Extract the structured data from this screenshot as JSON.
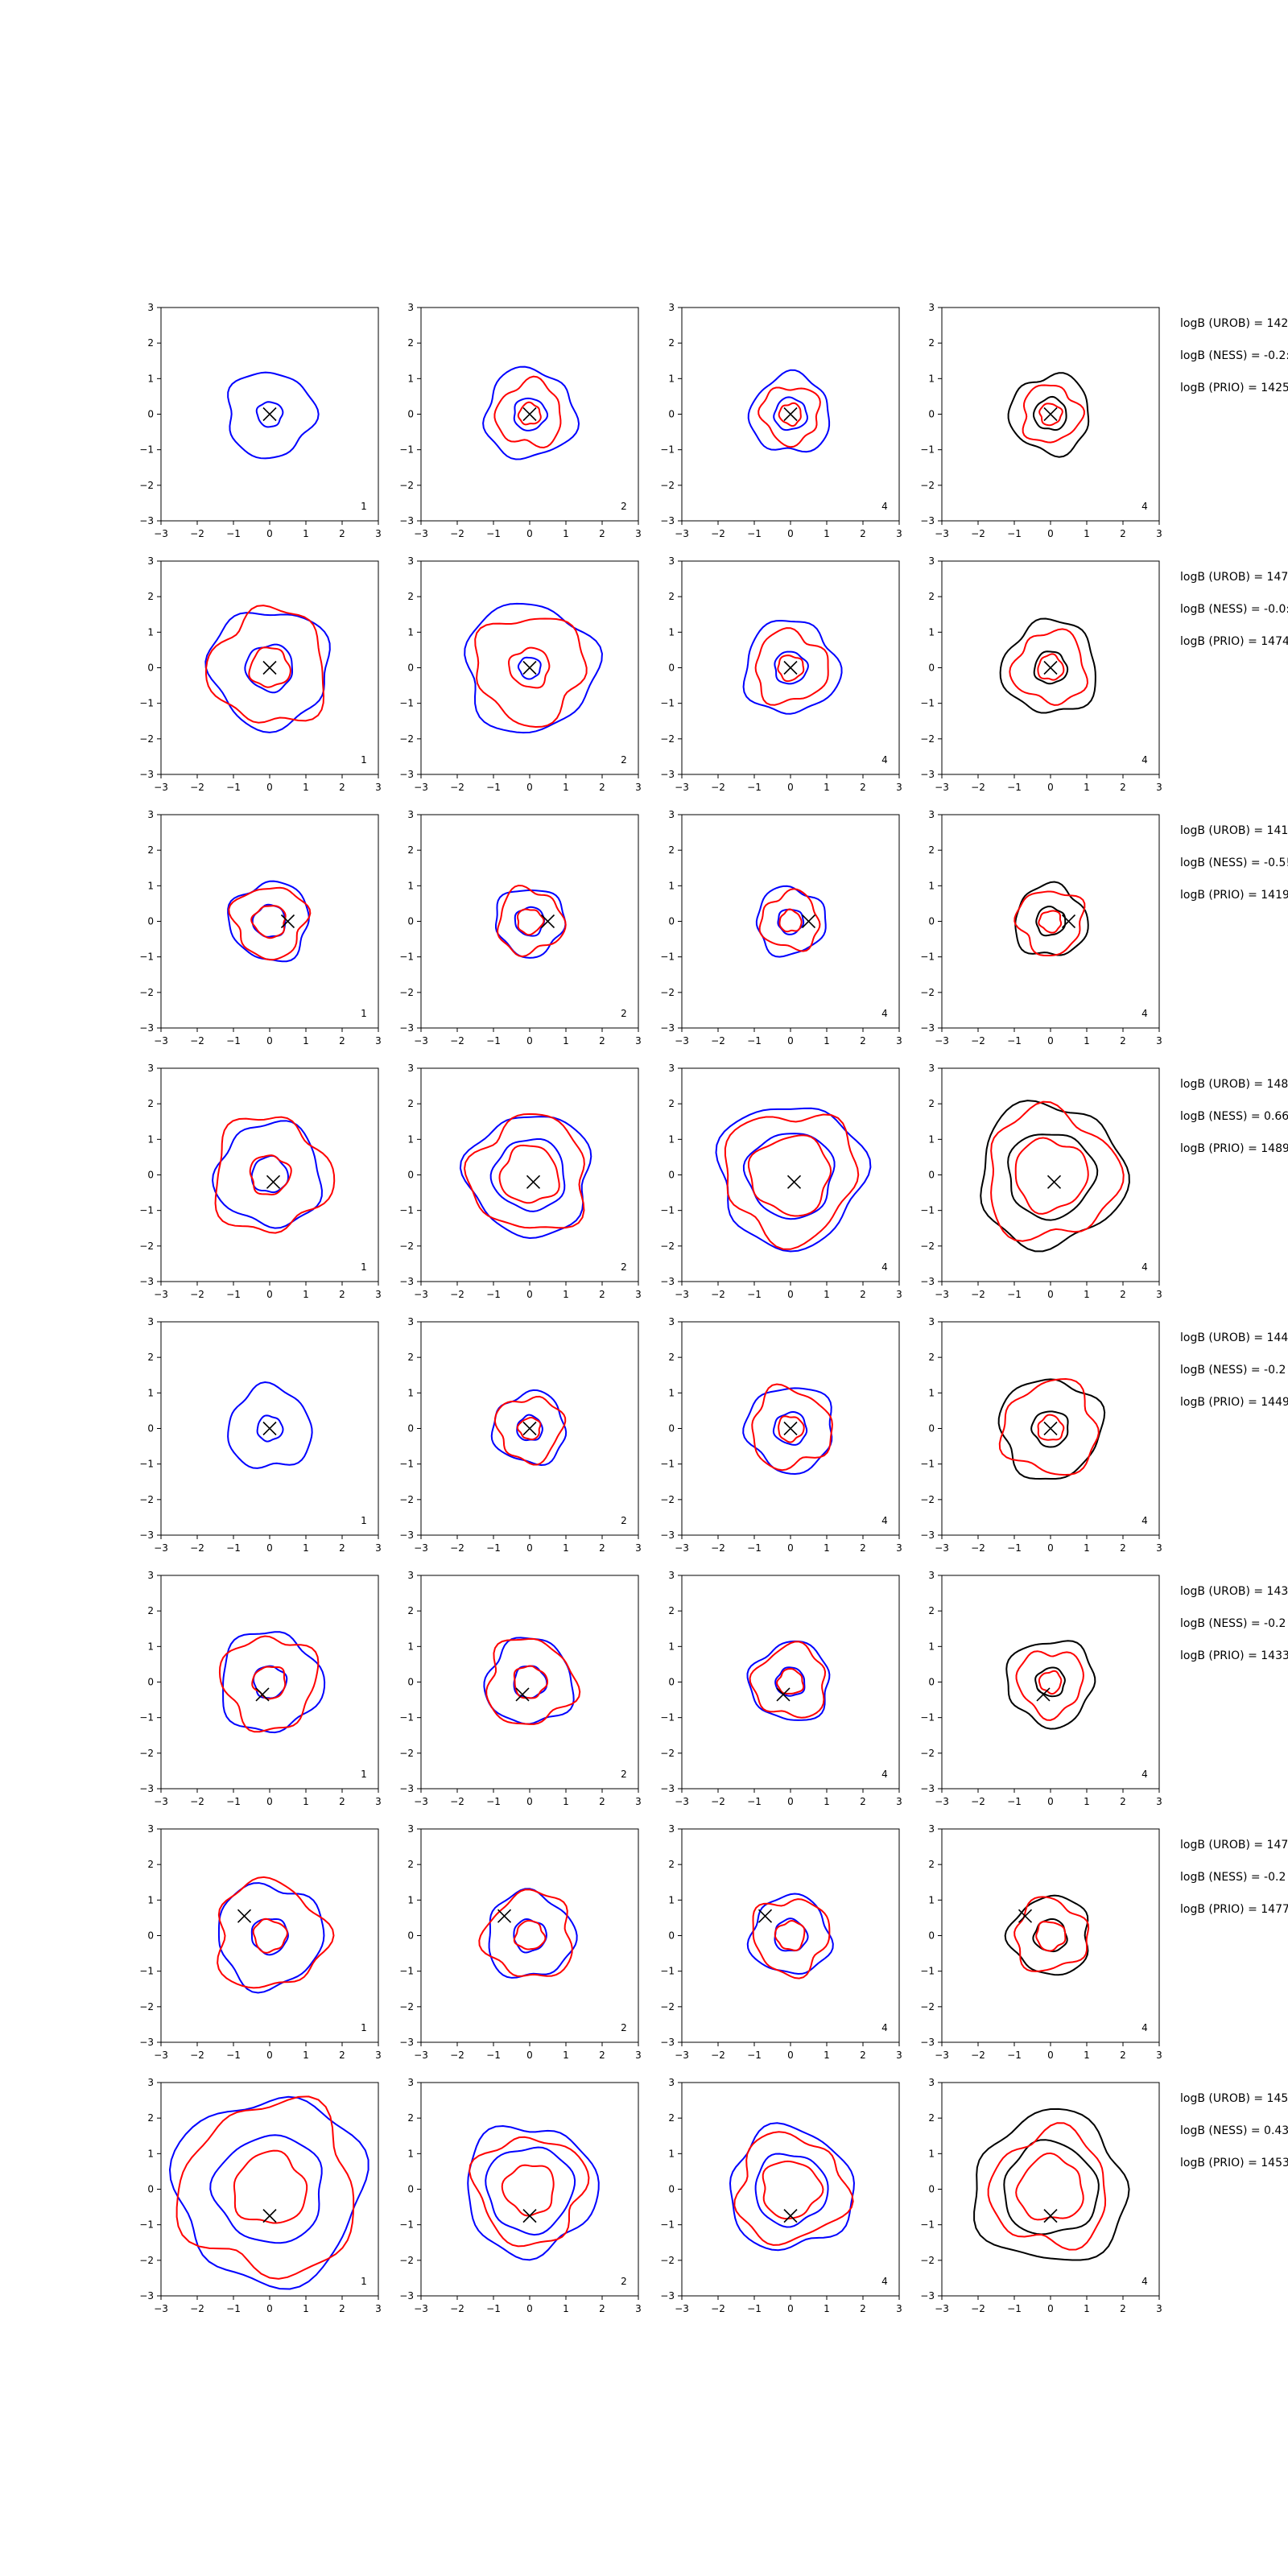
{
  "chart_data": {
    "type": "contour-grid",
    "xlim": [
      -3,
      3
    ],
    "ylim": [
      -3,
      3
    ],
    "ticks": [
      "−3",
      "−2",
      "−1",
      "0",
      "1",
      "2",
      "3"
    ],
    "grid": false,
    "colors": {
      "blue": "#0000ff",
      "red": "#ff0000",
      "black": "#000000",
      "marker": "#000000"
    },
    "panel_numbers": [
      "1",
      "2",
      "4",
      "4"
    ],
    "panel_colors": [
      [
        "blue",
        "red"
      ],
      [
        "blue",
        "red"
      ],
      [
        "blue",
        "red"
      ],
      [
        "black",
        "red"
      ]
    ],
    "rows": [
      {
        "notes": [
          "logB (UROB) = 142",
          "logB (NESS) = -0.2:",
          "logB (PRIO) = 1425"
        ],
        "marker": [
          0,
          0
        ],
        "panels": [
          {
            "a": [
              0.35,
              1.2
            ],
            "b": []
          },
          {
            "a": [
              0.45,
              1.25
            ],
            "b": [
              0.3,
              0.9
            ]
          },
          {
            "a": [
              0.45,
              1.1
            ],
            "b": [
              0.3,
              0.8
            ]
          },
          {
            "a": [
              0.45,
              1.1
            ],
            "b": [
              0.3,
              0.8
            ]
          }
        ]
      },
      {
        "notes": [
          "logB (UROB) = 147",
          "logB (NESS) = -0.0:",
          "logB (PRIO) = 1474"
        ],
        "marker": [
          0,
          0
        ],
        "panels": [
          {
            "a": [
              0.65,
              1.65
            ],
            "b": [
              0.55,
              1.6
            ]
          },
          {
            "a": [
              0.3,
              1.8
            ],
            "b": [
              0.55,
              1.5
            ]
          },
          {
            "a": [
              0.45,
              1.3
            ],
            "b": [
              0.35,
              1.0
            ]
          },
          {
            "a": [
              0.45,
              1.3
            ],
            "b": [
              0.35,
              1.0
            ]
          }
        ]
      },
      {
        "notes": [
          "logB (UROB) = 141",
          "logB (NESS) = -0.5!",
          "logB (PRIO) = 1419"
        ],
        "marker": [
          0.5,
          0
        ],
        "panels": [
          {
            "a": [
              0.45,
              1.1
            ],
            "b": [
              0.45,
              1.0
            ]
          },
          {
            "a": [
              0.4,
              0.95
            ],
            "b": [
              0.35,
              0.9
            ]
          },
          {
            "a": [
              0.35,
              0.95
            ],
            "b": [
              0.3,
              0.8
            ]
          },
          {
            "a": [
              0.4,
              1.0
            ],
            "b": [
              0.3,
              0.9
            ]
          }
        ]
      },
      {
        "notes": [
          "logB (UROB) = 148",
          "logB (NESS) = 0.66",
          "logB (PRIO) = 1489"
        ],
        "marker": [
          0.1,
          -0.2
        ],
        "panels": [
          {
            "a": [
              0.5,
              1.45
            ],
            "b": [
              0.55,
              1.6
            ]
          },
          {
            "a": [
              1.0,
              1.7
            ],
            "b": [
              0.8,
              1.6
            ]
          },
          {
            "a": [
              1.2,
              2.0
            ],
            "b": [
              1.1,
              1.8
            ]
          },
          {
            "a": [
              1.2,
              2.0
            ],
            "b": [
              1.0,
              1.8
            ]
          }
        ]
      },
      {
        "notes": [
          "logB (UROB) = 144",
          "logB (NESS) = -0.2",
          "logB (PRIO) = 1449"
        ],
        "marker": [
          0,
          0
        ],
        "panels": [
          {
            "a": [
              0.35,
              1.15
            ],
            "b": []
          },
          {
            "a": [
              0.35,
              1.0
            ],
            "b": [
              0.3,
              0.9
            ]
          },
          {
            "a": [
              0.45,
              1.2
            ],
            "b": [
              0.35,
              1.1
            ]
          },
          {
            "a": [
              0.5,
              1.4
            ],
            "b": [
              0.35,
              1.3
            ]
          }
        ]
      },
      {
        "notes": [
          "logB (UROB) = 143",
          "logB (NESS) = -0.2",
          "logB (PRIO) = 1433"
        ],
        "marker": [
          -0.2,
          -0.35
        ],
        "panels": [
          {
            "a": [
              0.45,
              1.4
            ],
            "b": [
              0.45,
              1.3
            ]
          },
          {
            "a": [
              0.45,
              1.2
            ],
            "b": [
              0.45,
              1.2
            ]
          },
          {
            "a": [
              0.4,
              1.1
            ],
            "b": [
              0.35,
              1.0
            ]
          },
          {
            "a": [
              0.4,
              1.2
            ],
            "b": [
              0.3,
              0.9
            ]
          }
        ]
      },
      {
        "notes": [
          "logB (UROB) = 147",
          "logB (NESS) = -0.2",
          "logB (PRIO) = 1477"
        ],
        "marker": [
          -0.7,
          0.55
        ],
        "panels": [
          {
            "a": [
              0.5,
              1.45
            ],
            "b": [
              0.45,
              1.5
            ]
          },
          {
            "a": [
              0.45,
              1.2
            ],
            "b": [
              0.4,
              1.2
            ]
          },
          {
            "a": [
              0.45,
              1.1
            ],
            "b": [
              0.4,
              1.05
            ]
          },
          {
            "a": [
              0.45,
              1.1
            ],
            "b": [
              0.4,
              1.0
            ]
          }
        ]
      },
      {
        "notes": [
          "logB (UROB) = 145",
          "logB (NESS) = 0.43",
          "logB (PRIO) = 1453"
        ],
        "marker": [
          0,
          -0.75
        ],
        "panels": [
          {
            "a": [
              1.5,
              2.6
            ],
            "b": [
              1.0,
              2.4
            ]
          },
          {
            "a": [
              1.2,
              1.8
            ],
            "b": [
              0.7,
              1.5
            ]
          },
          {
            "a": [
              1.0,
              1.7
            ],
            "b": [
              0.8,
              1.5
            ]
          },
          {
            "a": [
              1.3,
              2.1
            ],
            "b": [
              0.9,
              1.6
            ]
          }
        ]
      }
    ]
  }
}
